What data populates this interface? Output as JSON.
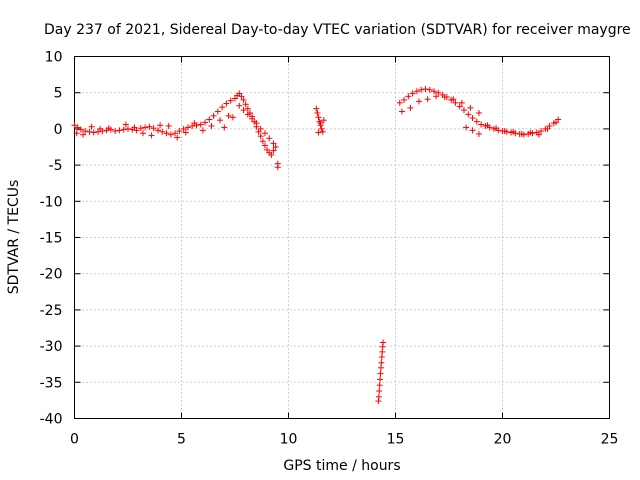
{
  "chart_data": {
    "type": "scatter",
    "title": "Day 237 of 2021, Sidereal Day-to-day VTEC variation (SDTVAR) for receiver maygre",
    "xlabel": "GPS time / hours",
    "ylabel": "SDTVAR / TECUs",
    "xlim": [
      0,
      25
    ],
    "ylim": [
      -40,
      10
    ],
    "x_ticks": [
      "0",
      "5",
      "10",
      "15",
      "20",
      "25"
    ],
    "y_ticks": [
      "10",
      "5",
      "0",
      "-5",
      "-10",
      "-15",
      "-20",
      "-25",
      "-30",
      "-35",
      "-40"
    ],
    "grid": true,
    "marker": "plus",
    "color": "#ff0000",
    "series": [
      {
        "name": "SDTVAR",
        "x": [
          0.0,
          0.15,
          0.3,
          0.5,
          0.7,
          0.9,
          1.1,
          1.3,
          1.5,
          1.7,
          1.9,
          2.1,
          2.3,
          2.5,
          2.7,
          2.9,
          3.1,
          3.3,
          3.5,
          3.7,
          3.9,
          4.1,
          4.3,
          4.5,
          4.7,
          4.9,
          5.1,
          5.3,
          5.5,
          5.7,
          5.9,
          6.1,
          6.3,
          6.5,
          6.7,
          6.9,
          7.1,
          7.3,
          7.5,
          7.6,
          7.7,
          7.8,
          7.9,
          8.0,
          8.1,
          8.2,
          8.3,
          8.4,
          8.5,
          8.6,
          8.7,
          8.8,
          8.9,
          9.0,
          9.1,
          9.2,
          9.3,
          9.4,
          9.5,
          9.5,
          0.1,
          0.4,
          0.8,
          1.2,
          1.6,
          2.4,
          2.8,
          3.2,
          3.6,
          4.0,
          4.4,
          4.8,
          5.2,
          5.6,
          6.0,
          6.4,
          6.8,
          7.2,
          7.7,
          7.9,
          8.1,
          8.3,
          8.5,
          8.7,
          8.9,
          9.1,
          9.3,
          7.0,
          7.4,
          11.3,
          11.35,
          11.4,
          11.45,
          11.5,
          11.55,
          11.6,
          11.65,
          11.4,
          11.5,
          14.2,
          14.22,
          14.24,
          14.26,
          14.28,
          14.3,
          14.32,
          14.34,
          14.36,
          14.38,
          14.4,
          14.42,
          15.2,
          15.4,
          15.6,
          15.8,
          16.0,
          16.2,
          16.4,
          16.6,
          16.8,
          17.0,
          17.2,
          17.4,
          17.6,
          17.8,
          18.0,
          18.2,
          18.4,
          18.6,
          18.8,
          19.0,
          19.2,
          19.4,
          19.6,
          19.8,
          20.0,
          20.2,
          20.4,
          20.6,
          20.8,
          21.0,
          21.2,
          21.4,
          21.6,
          21.8,
          22.0,
          22.2,
          22.4,
          22.6,
          15.3,
          15.7,
          16.1,
          16.5,
          16.9,
          17.3,
          17.7,
          18.1,
          18.5,
          18.9,
          19.3,
          19.7,
          20.1,
          20.5,
          20.9,
          21.3,
          21.7,
          22.1,
          22.5,
          18.3,
          18.6,
          18.9
        ],
        "y": [
          0.5,
          0.2,
          -0.1,
          -0.3,
          -0.4,
          -0.5,
          -0.4,
          -0.3,
          -0.2,
          -0.1,
          -0.3,
          -0.2,
          -0.1,
          0.0,
          -0.1,
          -0.2,
          0.1,
          0.2,
          0.3,
          0.1,
          -0.2,
          -0.4,
          -0.6,
          -0.8,
          -0.6,
          -0.3,
          0.0,
          0.2,
          0.4,
          0.5,
          0.6,
          0.9,
          1.3,
          1.8,
          2.4,
          3.0,
          3.5,
          3.9,
          4.2,
          4.6,
          4.9,
          4.5,
          4.0,
          3.4,
          2.8,
          2.2,
          1.7,
          1.0,
          0.3,
          -0.4,
          -1.0,
          -1.7,
          -2.3,
          -2.9,
          -3.3,
          -3.6,
          -3.0,
          -2.5,
          -5.3,
          -4.8,
          -0.6,
          -0.8,
          0.3,
          0.0,
          0.1,
          0.6,
          0.2,
          -0.6,
          -0.9,
          0.5,
          0.4,
          -1.2,
          -0.5,
          0.8,
          -0.2,
          0.4,
          1.2,
          1.8,
          3.2,
          2.6,
          2.0,
          1.4,
          0.8,
          0.0,
          -0.6,
          -1.3,
          -2.0,
          0.2,
          1.6,
          2.8,
          2.2,
          1.6,
          1.0,
          0.5,
          0.0,
          -0.4,
          1.2,
          -0.5,
          0.8,
          -37.6,
          -37.0,
          -36.2,
          -35.4,
          -34.6,
          -33.8,
          -33.0,
          -32.3,
          -31.5,
          -30.8,
          -30.1,
          -29.5,
          3.6,
          4.0,
          4.5,
          4.9,
          5.2,
          5.4,
          5.5,
          5.4,
          5.2,
          5.0,
          4.7,
          4.4,
          4.0,
          3.6,
          3.1,
          2.6,
          2.0,
          1.5,
          1.0,
          0.6,
          0.4,
          0.2,
          0.0,
          -0.2,
          -0.3,
          -0.4,
          -0.5,
          -0.6,
          -0.7,
          -0.8,
          -0.7,
          -0.6,
          -0.5,
          -0.3,
          0.0,
          0.4,
          0.8,
          1.3,
          2.4,
          2.9,
          3.8,
          4.1,
          4.5,
          4.4,
          4.1,
          3.6,
          2.9,
          2.2,
          0.5,
          0.1,
          -0.3,
          -0.4,
          -0.7,
          -0.5,
          -0.8,
          0.0,
          0.9,
          0.2,
          -0.2,
          -0.7
        ]
      }
    ]
  }
}
